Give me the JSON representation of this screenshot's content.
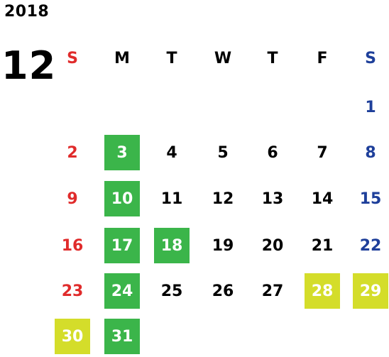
{
  "calendar": {
    "year": "2018",
    "month": "12",
    "weekdays": [
      "S",
      "M",
      "T",
      "W",
      "T",
      "F",
      "S"
    ],
    "colors": {
      "sunday": "#e02b2b",
      "saturday": "#1e3f9a",
      "weekday": "#000000",
      "highlight_green": "#3bb54a",
      "highlight_yellow": "#d4dd2a"
    },
    "weeks": [
      [
        "",
        "",
        "",
        "",
        "",
        "",
        "1"
      ],
      [
        "2",
        "3",
        "4",
        "5",
        "6",
        "7",
        "8"
      ],
      [
        "9",
        "10",
        "11",
        "12",
        "13",
        "14",
        "15"
      ],
      [
        "16",
        "17",
        "18",
        "19",
        "20",
        "21",
        "22"
      ],
      [
        "23",
        "24",
        "25",
        "26",
        "27",
        "28",
        "29"
      ],
      [
        "30",
        "31",
        "",
        "",
        "",
        "",
        ""
      ]
    ],
    "highlighted_green": [
      "3",
      "10",
      "17",
      "18",
      "24",
      "31"
    ],
    "highlighted_yellow": [
      "28",
      "29",
      "30"
    ]
  }
}
